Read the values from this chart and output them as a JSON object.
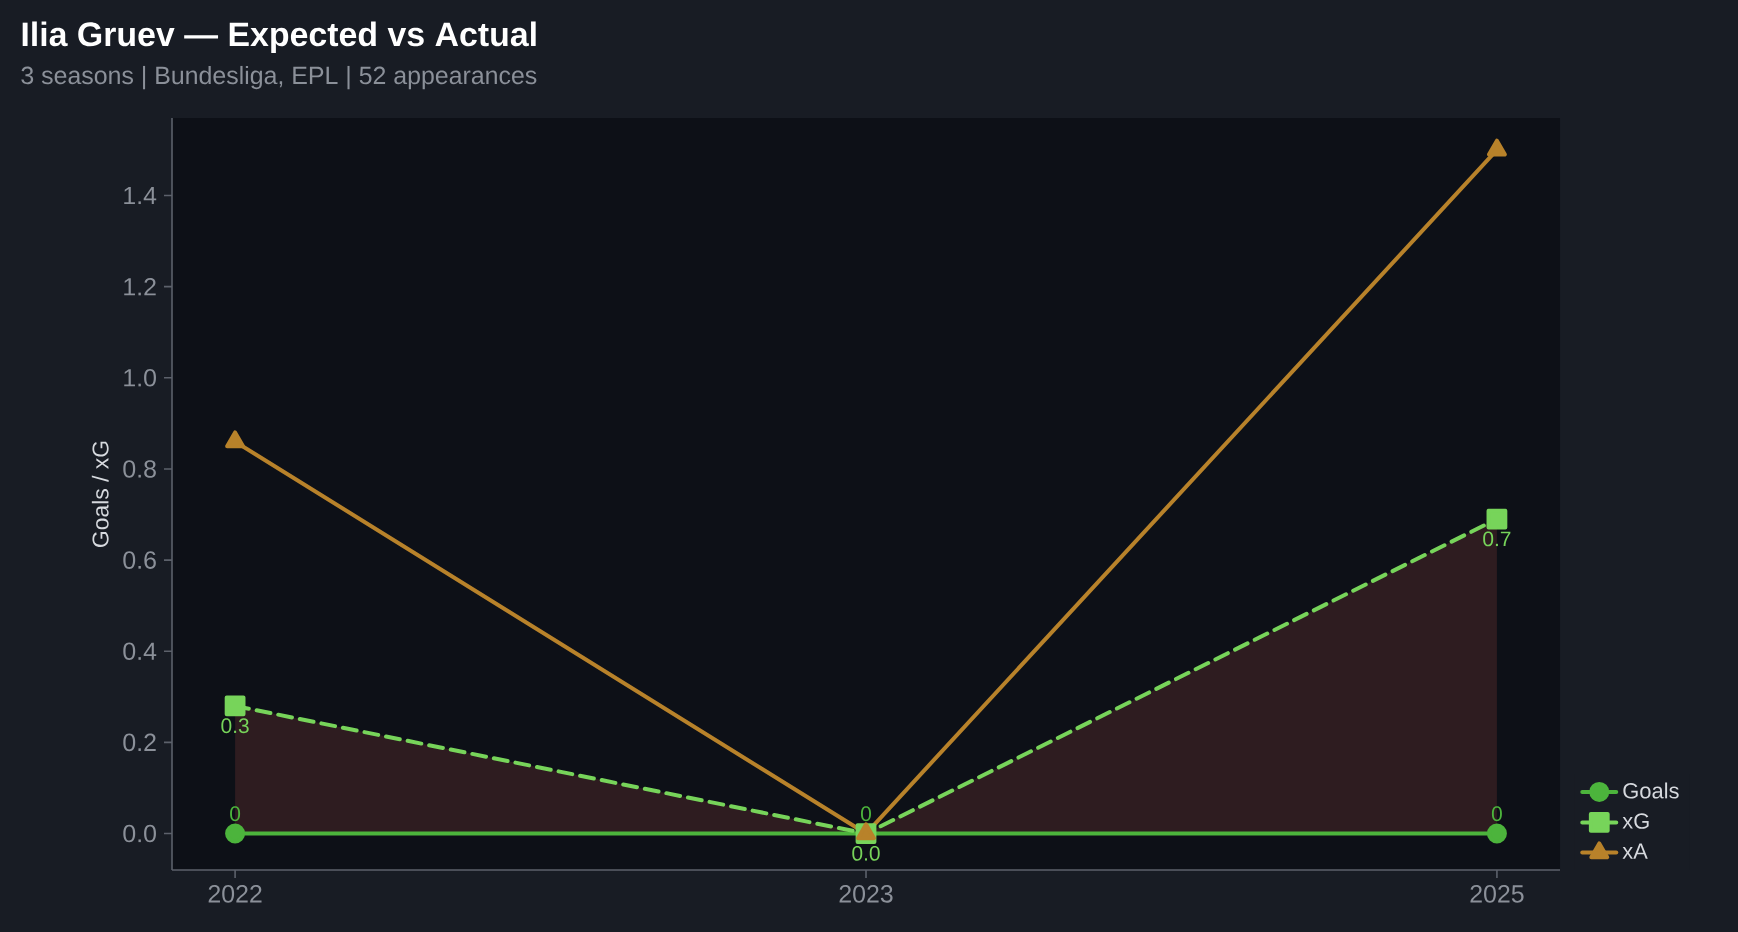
{
  "chart_data": {
    "type": "line",
    "title": "Ilia Gruev — Expected vs Actual",
    "subtitle": "3 seasons | Bundesliga, EPL | 52 appearances",
    "ylabel": "Goals / xG",
    "categories": [
      "2022",
      "2023",
      "2025"
    ],
    "series": [
      {
        "name": "Goals",
        "color": "#4cb43c",
        "values": [
          0,
          0,
          0
        ],
        "marker": "circle",
        "line_style": "solid",
        "value_labels": [
          "0",
          "0",
          "0"
        ]
      },
      {
        "name": "xG",
        "color": "#77d45a",
        "values": [
          0.28,
          0,
          0.69
        ],
        "marker": "square",
        "line_style": "dashed",
        "value_labels": [
          "0.3",
          "0.0",
          "0.7"
        ],
        "lower": [
          0,
          0,
          0
        ],
        "upper": [
          0.28,
          0,
          0.69
        ]
      },
      {
        "name": "xA",
        "color": "#b8822a",
        "values": [
          0.86,
          0,
          1.5
        ],
        "marker": "triangle",
        "line_style": "solid"
      }
    ],
    "ylim": [
      -0.08,
      1.57
    ],
    "yticks": [
      {
        "value": 0,
        "label": "0.0"
      },
      0.2,
      0.4,
      0.6,
      0.8,
      {
        "value": 1,
        "label": "1.0"
      },
      1.2,
      1.4
    ],
    "legend": "bottom right"
  }
}
